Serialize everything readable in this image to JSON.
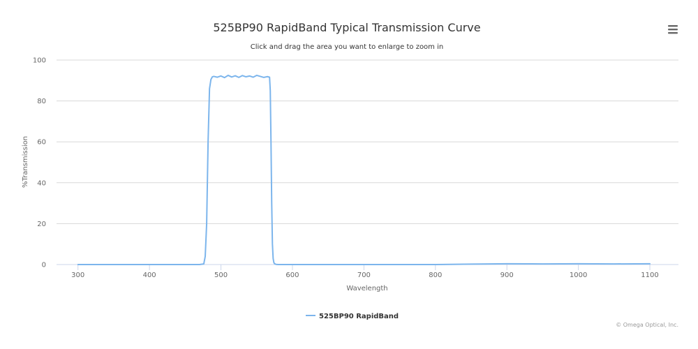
{
  "chart_data": {
    "type": "line",
    "title": "525BP90 RapidBand Typical Transmission Curve",
    "subtitle": "Click and drag the area you want to enlarge to zoom in",
    "xlabel": "Wavelength",
    "ylabel": "%Transmission",
    "xlim": [
      270,
      1140
    ],
    "ylim": [
      0,
      100
    ],
    "x_ticks": [
      "300",
      "400",
      "500",
      "600",
      "700",
      "800",
      "900",
      "1000",
      "1100"
    ],
    "y_ticks": [
      "0",
      "20",
      "40",
      "60",
      "80",
      "100"
    ],
    "grid": true,
    "legend_position": "bottom-center",
    "series": [
      {
        "name": "525BP90 RapidBand",
        "color": "#7cb5ec",
        "x": [
          300,
          400,
          470,
          476,
          478,
          480,
          482,
          484,
          486,
          488,
          490,
          495,
          500,
          505,
          510,
          515,
          520,
          525,
          530,
          535,
          540,
          545,
          550,
          555,
          560,
          565,
          568,
          569,
          570,
          571,
          572,
          573,
          574,
          575,
          577,
          580,
          600,
          700,
          800,
          850,
          900,
          950,
          1000,
          1050,
          1100
        ],
        "y": [
          0,
          0,
          0,
          0.3,
          4,
          20,
          60,
          86,
          90.5,
          91.8,
          92,
          91.6,
          92.2,
          91.4,
          92.5,
          91.7,
          92.3,
          91.5,
          92.4,
          91.8,
          92.2,
          91.6,
          92.5,
          92,
          91.5,
          91.9,
          91.6,
          85,
          60,
          30,
          10,
          3,
          1,
          0.4,
          0.1,
          0,
          0,
          0,
          0,
          0.2,
          0.4,
          0.3,
          0.4,
          0.3,
          0.4
        ]
      }
    ]
  },
  "credits": "© Omega Optical, Inc.",
  "menu_icon": "hamburger-menu-icon"
}
